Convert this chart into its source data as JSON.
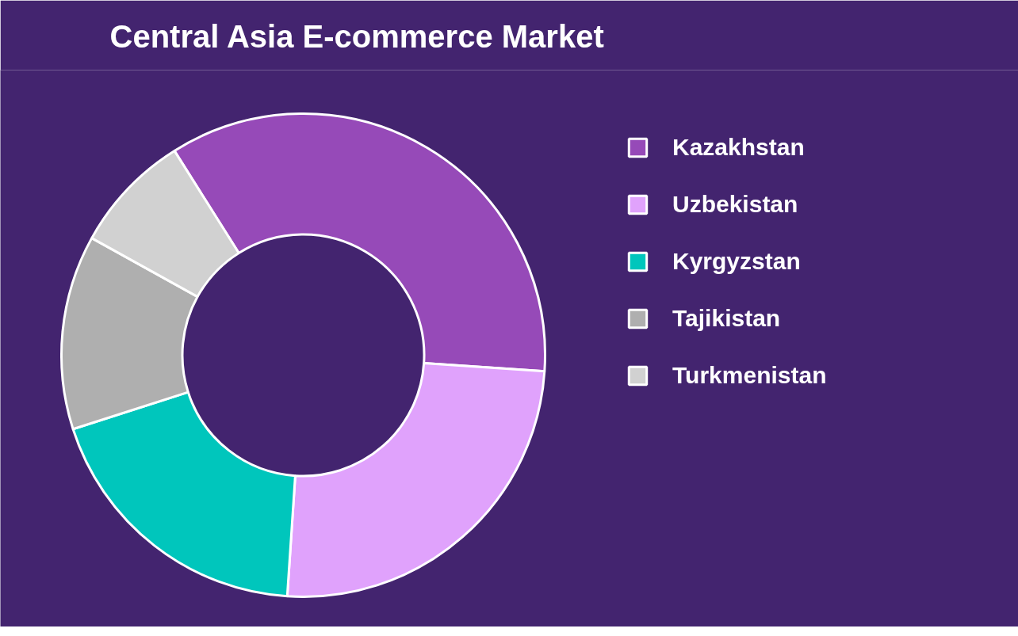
{
  "chart_data": {
    "type": "donut",
    "title": "Central Asia E-commerce Market",
    "categories": [
      "Kazakhstan",
      "Uzbekistan",
      "Kyrgyzstan",
      "Tajikistan",
      "Turkmenistan"
    ],
    "values": [
      35,
      25,
      19,
      13,
      8
    ],
    "colors": [
      "#964ab8",
      "#e0a2fc",
      "#00c6bc",
      "#afafaf",
      "#d1d1d1"
    ],
    "legend": "top right"
  }
}
